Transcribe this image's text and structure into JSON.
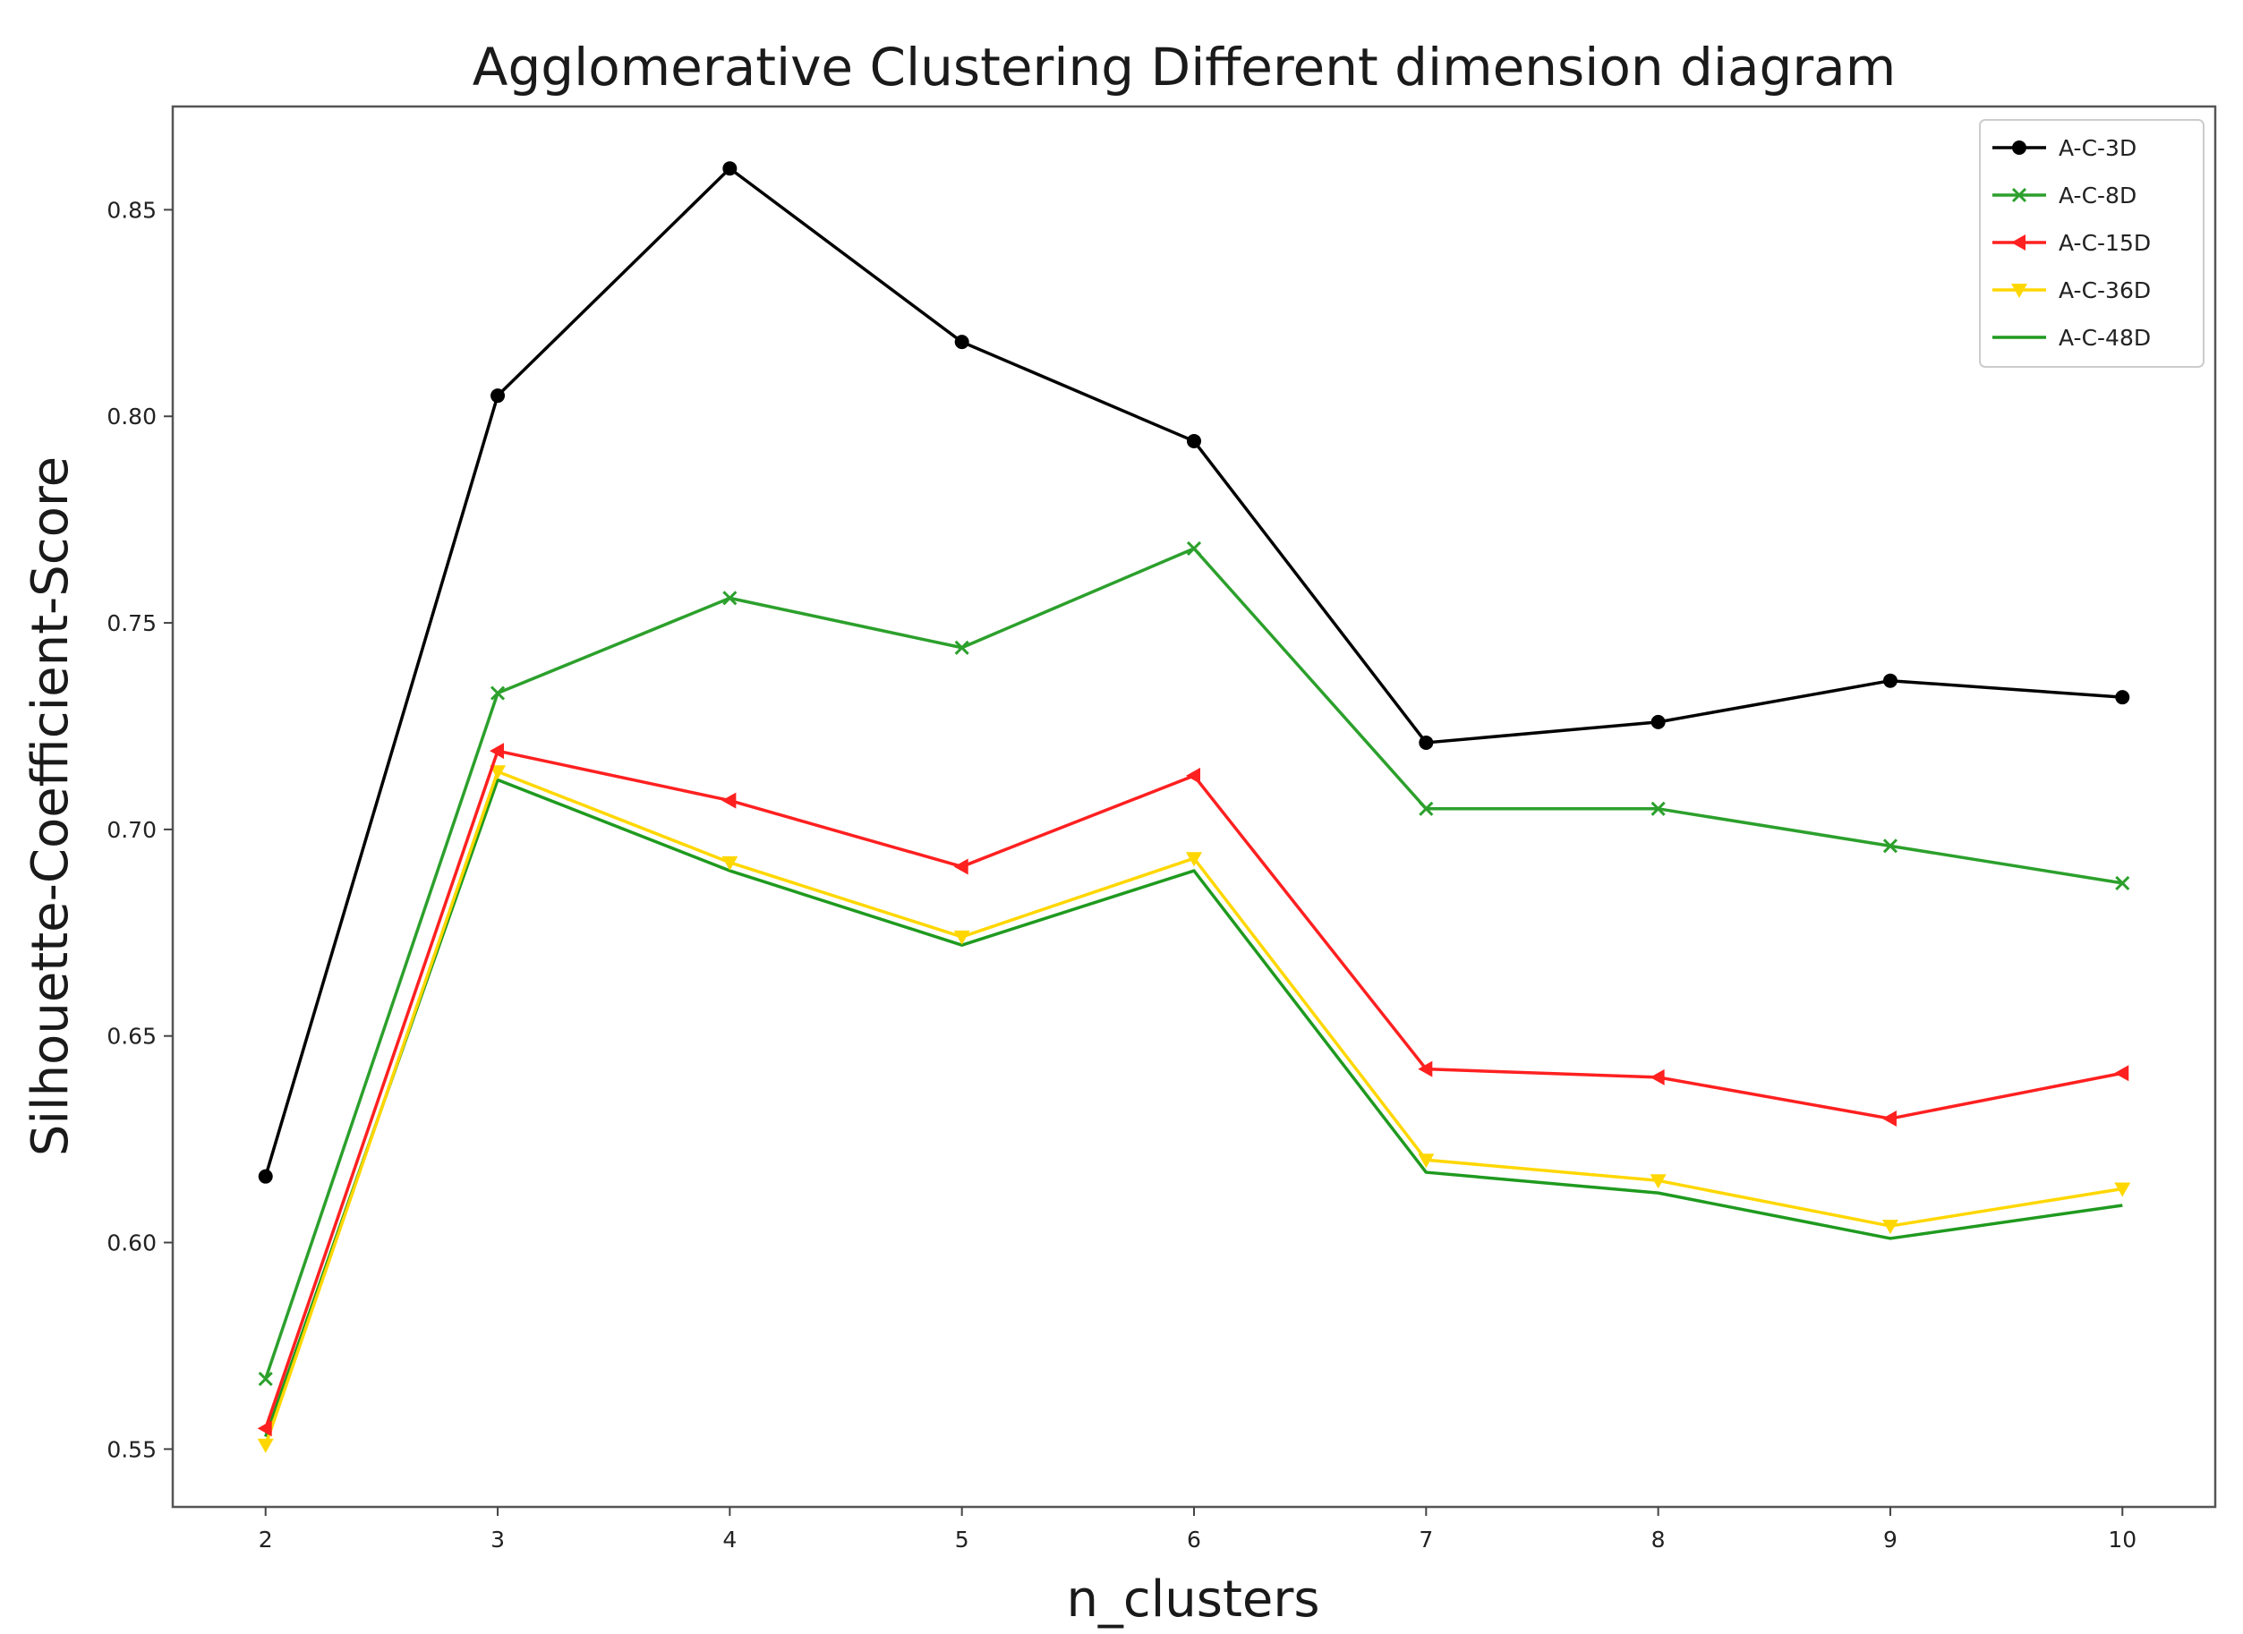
{
  "chart_data": {
    "type": "line",
    "title": "Agglomerative Clustering Different dimension diagram",
    "xlabel": "n_clusters",
    "ylabel": "Silhouette-Coefficient-Score",
    "x": [
      2,
      3,
      4,
      5,
      6,
      7,
      8,
      9,
      10
    ],
    "xlim": [
      1.6,
      10.4
    ],
    "ylim": [
      0.536,
      0.875
    ],
    "x_ticks": [
      "2",
      "3",
      "4",
      "5",
      "6",
      "7",
      "8",
      "9",
      "10"
    ],
    "y_ticks": [
      "0.55",
      "0.60",
      "0.65",
      "0.70",
      "0.75",
      "0.80",
      "0.85"
    ],
    "y_tick_values": [
      0.55,
      0.6,
      0.65,
      0.7,
      0.75,
      0.8,
      0.85
    ],
    "grid": false,
    "legend_position": "top-right",
    "series": [
      {
        "name": "A-C-3D",
        "color": "#000000",
        "marker": "circle",
        "values": [
          0.616,
          0.805,
          0.86,
          0.818,
          0.794,
          0.721,
          0.726,
          0.736,
          0.732
        ]
      },
      {
        "name": "A-C-8D",
        "color": "#2ca02c",
        "marker": "x",
        "values": [
          0.567,
          0.733,
          0.756,
          0.744,
          0.768,
          0.705,
          0.705,
          0.696,
          0.687
        ]
      },
      {
        "name": "A-C-15D",
        "color": "#ff2020",
        "marker": "triangle-left",
        "values": [
          0.555,
          0.719,
          0.707,
          0.691,
          0.713,
          0.642,
          0.64,
          0.63,
          0.641
        ]
      },
      {
        "name": "A-C-36D",
        "color": "#ffd700",
        "marker": "triangle-down",
        "values": [
          0.551,
          0.714,
          0.692,
          0.674,
          0.693,
          0.62,
          0.615,
          0.604,
          0.613
        ]
      },
      {
        "name": "A-C-48D",
        "color": "#1f9a1f",
        "marker": "none",
        "values": [
          0.553,
          0.712,
          0.69,
          0.672,
          0.69,
          0.617,
          0.612,
          0.601,
          0.609
        ]
      }
    ]
  }
}
